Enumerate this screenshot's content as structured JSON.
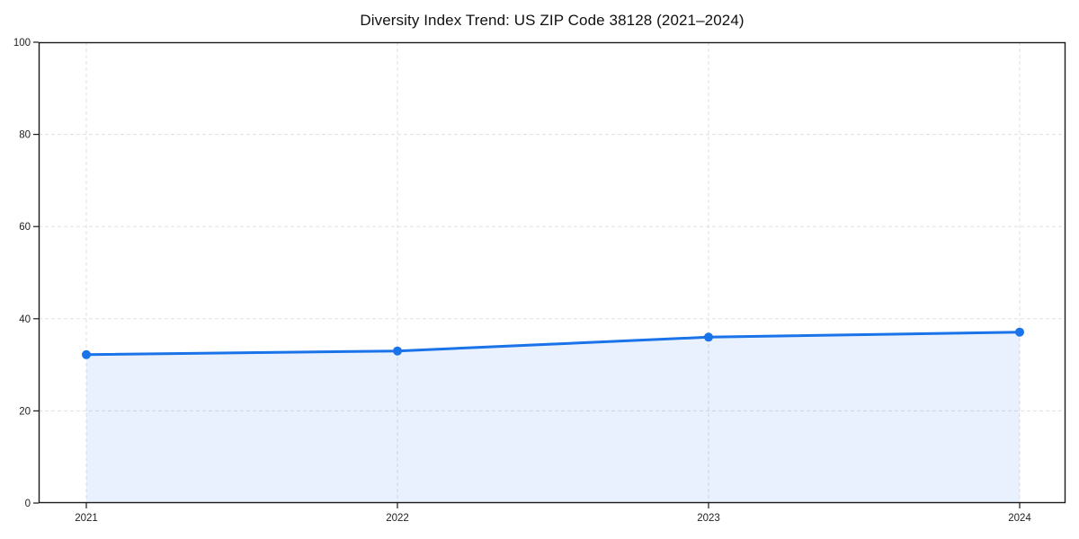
{
  "figure": {
    "background": "#ffffff"
  },
  "chart_data": {
    "type": "area",
    "title": "Diversity Index Trend: US ZIP Code 38128 (2021–2024)",
    "categories": [
      "2021",
      "2022",
      "2023",
      "2024"
    ],
    "values": [
      32.2,
      33.0,
      36.0,
      37.1
    ],
    "xlabel": "",
    "ylabel": "",
    "ylim": [
      0,
      100
    ],
    "yticks": [
      0,
      20,
      40,
      60,
      80,
      100
    ],
    "grid": true,
    "grid_style": "dashed",
    "legend_position": "none",
    "line_color": "#1a73e8",
    "marker_color": "#1a73e8",
    "fill_color": "rgba(26,115,232,0.10)",
    "gridline_color": "#e0e0e0",
    "axis_color": "#1a1a1a",
    "tick_label_color": "#222222"
  }
}
